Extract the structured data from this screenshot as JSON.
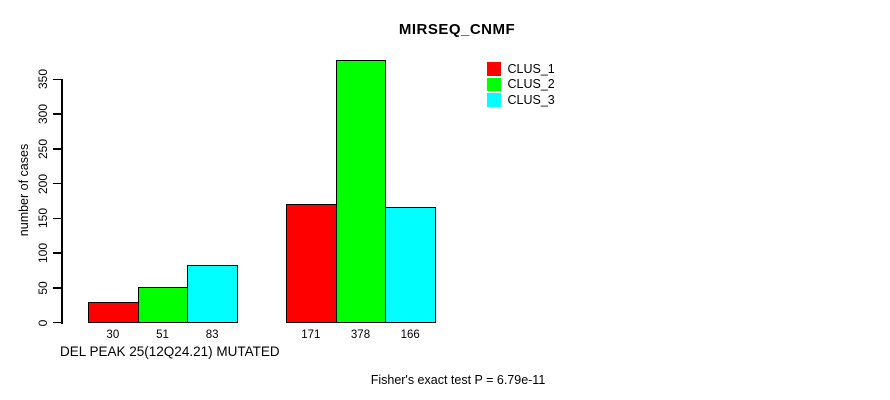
{
  "chart_data": {
    "type": "bar",
    "title": "MIRSEQ_CNMF",
    "ylabel": "number of cases",
    "xlabel": "DEL PEAK 25(12Q24.21) MUTATED",
    "annotation": "Fisher's exact test P = 6.79e-11",
    "yticks": [
      0,
      50,
      100,
      150,
      200,
      250,
      300,
      350
    ],
    "ylim": [
      0,
      378
    ],
    "grid": false,
    "legend_position": "top-right",
    "bar_border_color": "#000000",
    "groups_count": 2,
    "series": [
      {
        "name": "CLUS_1",
        "color": "#ff0000",
        "values": [
          30,
          171
        ]
      },
      {
        "name": "CLUS_2",
        "color": "#00ff00",
        "values": [
          51,
          378
        ]
      },
      {
        "name": "CLUS_3",
        "color": "#00ffff",
        "values": [
          83,
          166
        ]
      }
    ],
    "bar_value_labels": [
      [
        30,
        51,
        83
      ],
      [
        171,
        378,
        166
      ]
    ]
  }
}
